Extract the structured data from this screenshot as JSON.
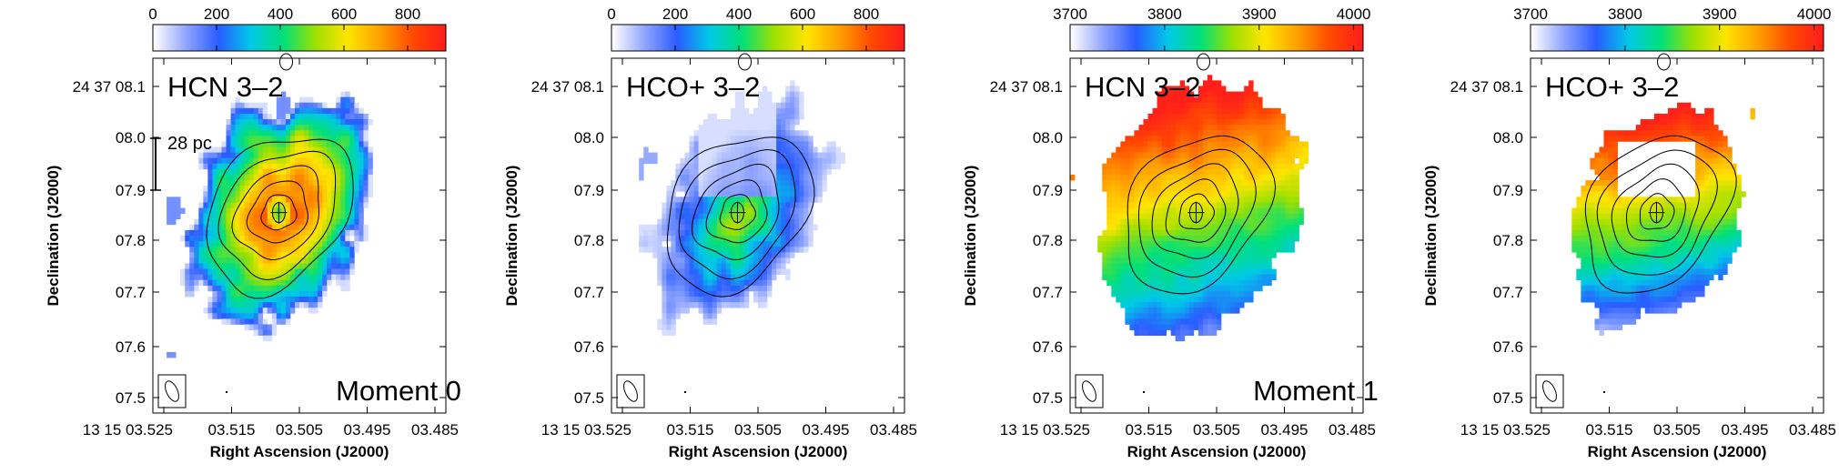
{
  "chart_data": [
    {
      "type": "heatmap",
      "line_label": "HCN 3–2",
      "moment_label": "Moment 0",
      "scale_bar_label": "28 pc",
      "colorbar": {
        "range": [
          0,
          920
        ],
        "ticks": [
          0,
          200,
          400,
          600,
          800
        ]
      },
      "xlabel": "Right Ascension (J2000)",
      "ylabel": "Declination (J2000)",
      "xticks": [
        "13 15 03.525",
        "03.515",
        "03.505",
        "03.495",
        "03.485"
      ],
      "yticks": [
        "24 37 08.1",
        "08.0",
        "07.9",
        "07.8",
        "07.7",
        "07.6",
        "07.5"
      ],
      "map": "hcn_mom0"
    },
    {
      "type": "heatmap",
      "line_label": "HCO+ 3–2",
      "moment_label": "",
      "scale_bar_label": "",
      "colorbar": {
        "range": [
          0,
          920
        ],
        "ticks": [
          0,
          200,
          400,
          600,
          800
        ]
      },
      "xlabel": "Right Ascension (J2000)",
      "ylabel": "Declination (J2000)",
      "xticks": [
        "13 15 03.525",
        "03.515",
        "03.505",
        "03.495",
        "03.485"
      ],
      "yticks": [
        "24 37 08.1",
        "08.0",
        "07.9",
        "07.8",
        "07.7",
        "07.6",
        "07.5"
      ],
      "map": "hco_mom0"
    },
    {
      "type": "heatmap",
      "line_label": "HCN 3–2",
      "moment_label": "Moment 1",
      "scale_bar_label": "",
      "colorbar": {
        "range": [
          3700,
          4010
        ],
        "ticks": [
          3700,
          3800,
          3900,
          4000
        ]
      },
      "xlabel": "Right Ascension (J2000)",
      "ylabel": "Declination (J2000)",
      "xticks": [
        "13 15 03.525",
        "03.515",
        "03.505",
        "03.495",
        "03.485"
      ],
      "yticks": [
        "24 37 08.1",
        "08.0",
        "07.9",
        "07.8",
        "07.7",
        "07.6",
        "07.5"
      ],
      "map": "hcn_mom1"
    },
    {
      "type": "heatmap",
      "line_label": "HCO+ 3–2",
      "moment_label": "",
      "scale_bar_label": "",
      "colorbar": {
        "range": [
          3700,
          4010
        ],
        "ticks": [
          3700,
          3800,
          3900,
          4000
        ]
      },
      "xlabel": "Right Ascension (J2000)",
      "ylabel": "Declination (J2000)",
      "xticks": [
        "13 15 03.525",
        "03.515",
        "03.505",
        "03.495",
        "03.485"
      ],
      "yticks": [
        "24 37 08.1",
        "08.0",
        "07.9",
        "07.8",
        "07.7",
        "07.6",
        "07.5"
      ],
      "map": "hco_mom1"
    }
  ],
  "colormap": [
    "#ffffff",
    "#8fa4ff",
    "#2a5cff",
    "#00c8e8",
    "#00e07a",
    "#9ee000",
    "#ffe400",
    "#ffa000",
    "#ff4a00",
    "#ff1c1c"
  ]
}
